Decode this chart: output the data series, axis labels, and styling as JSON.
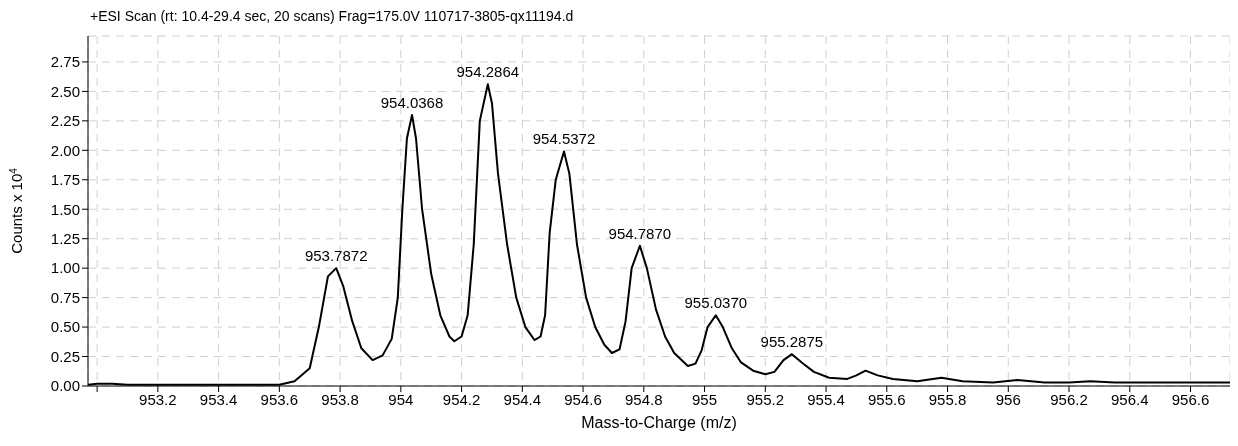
{
  "chart_data": {
    "type": "line",
    "title": "+ESI Scan (rt: 10.4-29.4 sec, 20 scans) Frag=175.0V 110717-3805-qx11194.d",
    "xlabel": "Mass-to-Charge (m/z)",
    "ylabel": "Counts x 10$^{4}$",
    "x": [
      952.97,
      953.0,
      953.05,
      953.1,
      953.3,
      953.5,
      953.6,
      953.65,
      953.7,
      953.73,
      953.76,
      953.7872,
      953.81,
      953.84,
      953.87,
      953.907,
      953.94,
      953.97,
      953.99,
      954.005,
      954.02,
      954.0368,
      954.05,
      954.07,
      954.1,
      954.13,
      954.16,
      954.176,
      954.2,
      954.22,
      954.24,
      954.26,
      954.2864,
      954.3,
      954.32,
      954.35,
      954.38,
      954.41,
      954.44,
      954.46,
      954.475,
      954.49,
      954.51,
      954.5372,
      954.555,
      954.58,
      954.61,
      954.64,
      954.67,
      954.695,
      954.72,
      954.74,
      954.76,
      954.787,
      954.81,
      954.84,
      954.87,
      954.9,
      954.945,
      954.97,
      954.99,
      955.01,
      955.037,
      955.06,
      955.09,
      955.12,
      955.16,
      955.2,
      955.23,
      955.26,
      955.2875,
      955.32,
      955.36,
      955.41,
      955.47,
      955.5,
      955.53,
      955.57,
      955.62,
      955.7,
      955.78,
      955.85,
      955.95,
      956.03,
      956.12,
      956.2,
      956.27,
      956.35,
      956.5,
      956.6,
      956.73
    ],
    "series": [
      {
        "color": "#000000",
        "values": [
          0.01,
          0.02,
          0.02,
          0.01,
          0.01,
          0.01,
          0.01,
          0.04,
          0.15,
          0.5,
          0.93,
          1.0,
          0.85,
          0.55,
          0.32,
          0.22,
          0.26,
          0.4,
          0.75,
          1.5,
          2.1,
          2.3,
          2.1,
          1.5,
          0.95,
          0.6,
          0.42,
          0.38,
          0.42,
          0.6,
          1.2,
          2.25,
          2.56,
          2.4,
          1.8,
          1.2,
          0.75,
          0.5,
          0.39,
          0.42,
          0.6,
          1.3,
          1.75,
          1.99,
          1.8,
          1.2,
          0.75,
          0.5,
          0.35,
          0.28,
          0.31,
          0.55,
          1.0,
          1.19,
          1.0,
          0.65,
          0.42,
          0.28,
          0.17,
          0.19,
          0.3,
          0.5,
          0.6,
          0.5,
          0.32,
          0.2,
          0.13,
          0.1,
          0.12,
          0.22,
          0.27,
          0.2,
          0.12,
          0.07,
          0.06,
          0.09,
          0.13,
          0.09,
          0.06,
          0.04,
          0.07,
          0.04,
          0.03,
          0.05,
          0.03,
          0.03,
          0.04,
          0.03,
          0.03,
          0.03,
          0.03
        ]
      }
    ],
    "annotations": [
      {
        "text": "953.7872",
        "x": 953.7872,
        "y": 1.0
      },
      {
        "text": "954.0368",
        "x": 954.0368,
        "y": 2.3
      },
      {
        "text": "954.2864",
        "x": 954.2864,
        "y": 2.56
      },
      {
        "text": "954.5372",
        "x": 954.5372,
        "y": 1.99
      },
      {
        "text": "954.7870",
        "x": 954.787,
        "y": 1.19
      },
      {
        "text": "955.0370",
        "x": 955.037,
        "y": 0.6
      },
      {
        "text": "955.2875",
        "x": 955.2875,
        "y": 0.27
      }
    ],
    "xlim": [
      952.97,
      956.73
    ],
    "xticks": [
      {
        "value": 953,
        "label": null
      },
      953.2,
      953.4,
      953.6,
      953.8,
      954,
      954.2,
      954.4,
      954.6,
      954.8,
      955,
      955.2,
      955.4,
      955.6,
      955.8,
      956,
      956.2,
      956.4,
      956.6
    ],
    "ylim": [
      0,
      2.97
    ],
    "yticks": [
      {
        "value": 0,
        "label": "0.00"
      },
      {
        "value": 0.25,
        "label": "0.25"
      },
      {
        "value": 0.5,
        "label": "0.50"
      },
      {
        "value": 0.75,
        "label": "0.75"
      },
      {
        "value": 1,
        "label": "1.00"
      },
      {
        "value": 1.25,
        "label": "1.25"
      },
      {
        "value": 1.5,
        "label": "1.50"
      },
      {
        "value": 1.75,
        "label": "1.75"
      },
      {
        "value": 2,
        "label": "2.00"
      },
      {
        "value": 2.25,
        "label": "2.25"
      },
      {
        "value": 2.5,
        "label": "2.50"
      },
      {
        "value": 2.75,
        "label": "2.75"
      }
    ],
    "grid": true,
    "line_style": "solid",
    "marker": "none",
    "legend": false
  }
}
